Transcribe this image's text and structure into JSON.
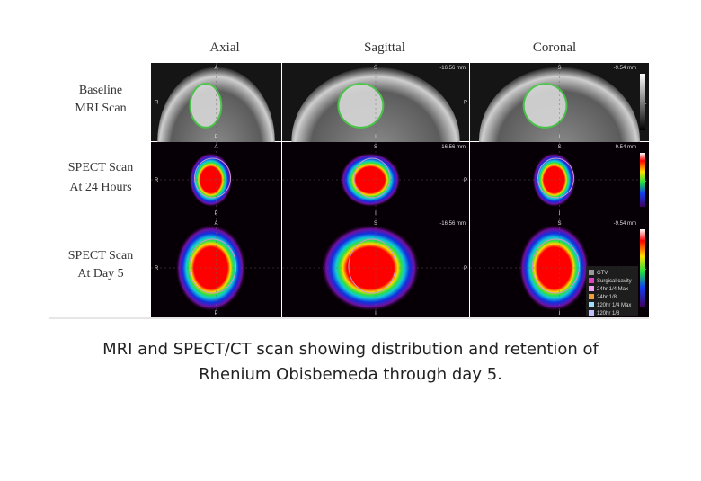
{
  "figure": {
    "columns": [
      "Axial",
      "Sagittal",
      "Coronal"
    ],
    "rows": [
      [
        "Baseline",
        "MRI Scan"
      ],
      [
        "SPECT Scan",
        "At 24 Hours"
      ],
      [
        "SPECT Scan",
        "At Day 5"
      ]
    ],
    "slice_labels": [
      "-16.56 mm",
      "-9.54 mm"
    ],
    "orientation": [
      "R",
      "L",
      "S",
      "I",
      "A",
      "P"
    ],
    "legend": [
      "GTV",
      "Surgical cavity",
      "24hr 1/4 Max",
      "24hr 1/8",
      "120hr 1/4 Max",
      "120hr 1/8"
    ]
  },
  "caption": [
    "MRI and SPECT/CT scan showing distribution and retention of",
    "Rhenium Obisbemeda through day 5."
  ]
}
